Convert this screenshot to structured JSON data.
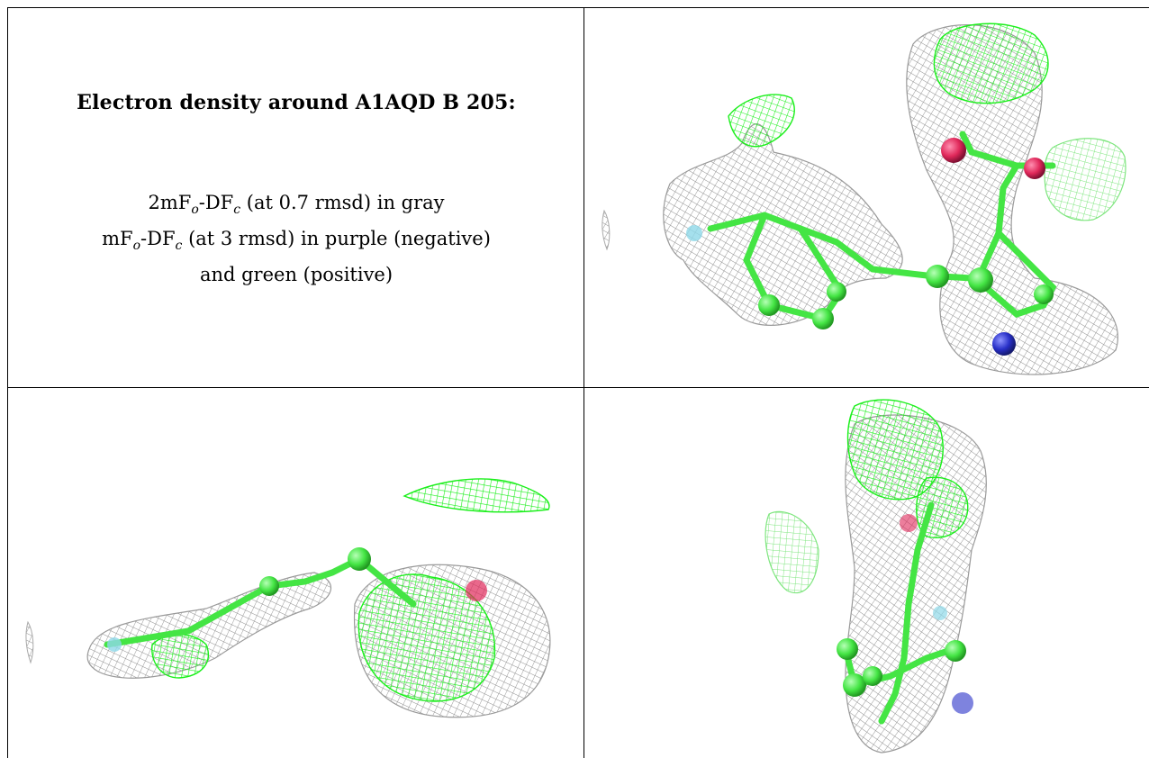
{
  "caption": {
    "title": "Electron density around A1AQD B 205:",
    "line1": "2mFo-DFc (at 0.7 rmsd) in gray",
    "line2": "mFo-DFc (at 3 rmsd) in purple (negative)",
    "line3": "and green (positive)"
  },
  "colors": {
    "map_2fofc": "#9a9a9a",
    "positive_diff": "#22ee22",
    "negative_diff": "#9c27b0",
    "carbon": "#44e544",
    "oxygen": "#e0285a",
    "nitrogen": "#2830c8",
    "fluorine": "#8fd8e8"
  },
  "panels": [
    {
      "view": "top-right"
    },
    {
      "view": "bottom-left"
    },
    {
      "view": "bottom-right"
    }
  ]
}
